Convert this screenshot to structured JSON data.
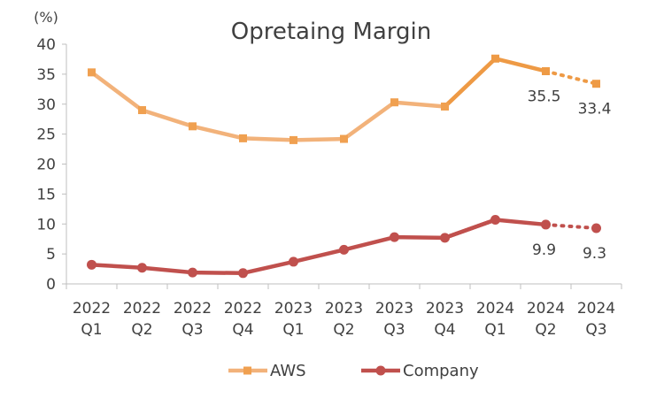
{
  "chart_data": {
    "type": "line",
    "title": "Opretaing Margin",
    "unit_label": "(%)",
    "xlabel": "",
    "ylabel": "",
    "ylim": [
      0,
      40
    ],
    "y_ticks": [
      0,
      5,
      10,
      15,
      20,
      25,
      30,
      35,
      40
    ],
    "grid": false,
    "legend_position": "bottom",
    "categories": [
      {
        "year": "2022",
        "quarter": "Q1"
      },
      {
        "year": "2022",
        "quarter": "Q2"
      },
      {
        "year": "2022",
        "quarter": "Q3"
      },
      {
        "year": "2022",
        "quarter": "Q4"
      },
      {
        "year": "2023",
        "quarter": "Q1"
      },
      {
        "year": "2023",
        "quarter": "Q2"
      },
      {
        "year": "2023",
        "quarter": "Q3"
      },
      {
        "year": "2023",
        "quarter": "Q4"
      },
      {
        "year": "2024",
        "quarter": "Q1"
      },
      {
        "year": "2024",
        "quarter": "Q2"
      },
      {
        "year": "2024",
        "quarter": "Q3"
      }
    ],
    "series": [
      {
        "name": "AWS",
        "marker": "square",
        "color": "#F2B27A",
        "marker_color": "#F0A050",
        "line_color_recent": "#EE9A45",
        "values": [
          35.3,
          29.0,
          26.3,
          24.3,
          24.0,
          24.2,
          30.3,
          29.6,
          37.6,
          35.5,
          33.4
        ],
        "data_labels": {
          "9": "35.5",
          "10": "33.4"
        }
      },
      {
        "name": "Company",
        "marker": "circle",
        "color": "#C0504D",
        "marker_color": "#C0504D",
        "line_color_recent": "#C0504D",
        "values": [
          3.2,
          2.7,
          1.9,
          1.8,
          3.7,
          5.7,
          7.8,
          7.7,
          10.7,
          9.9,
          9.3
        ],
        "data_labels": {
          "9": "9.9",
          "10": "9.3"
        }
      }
    ]
  }
}
